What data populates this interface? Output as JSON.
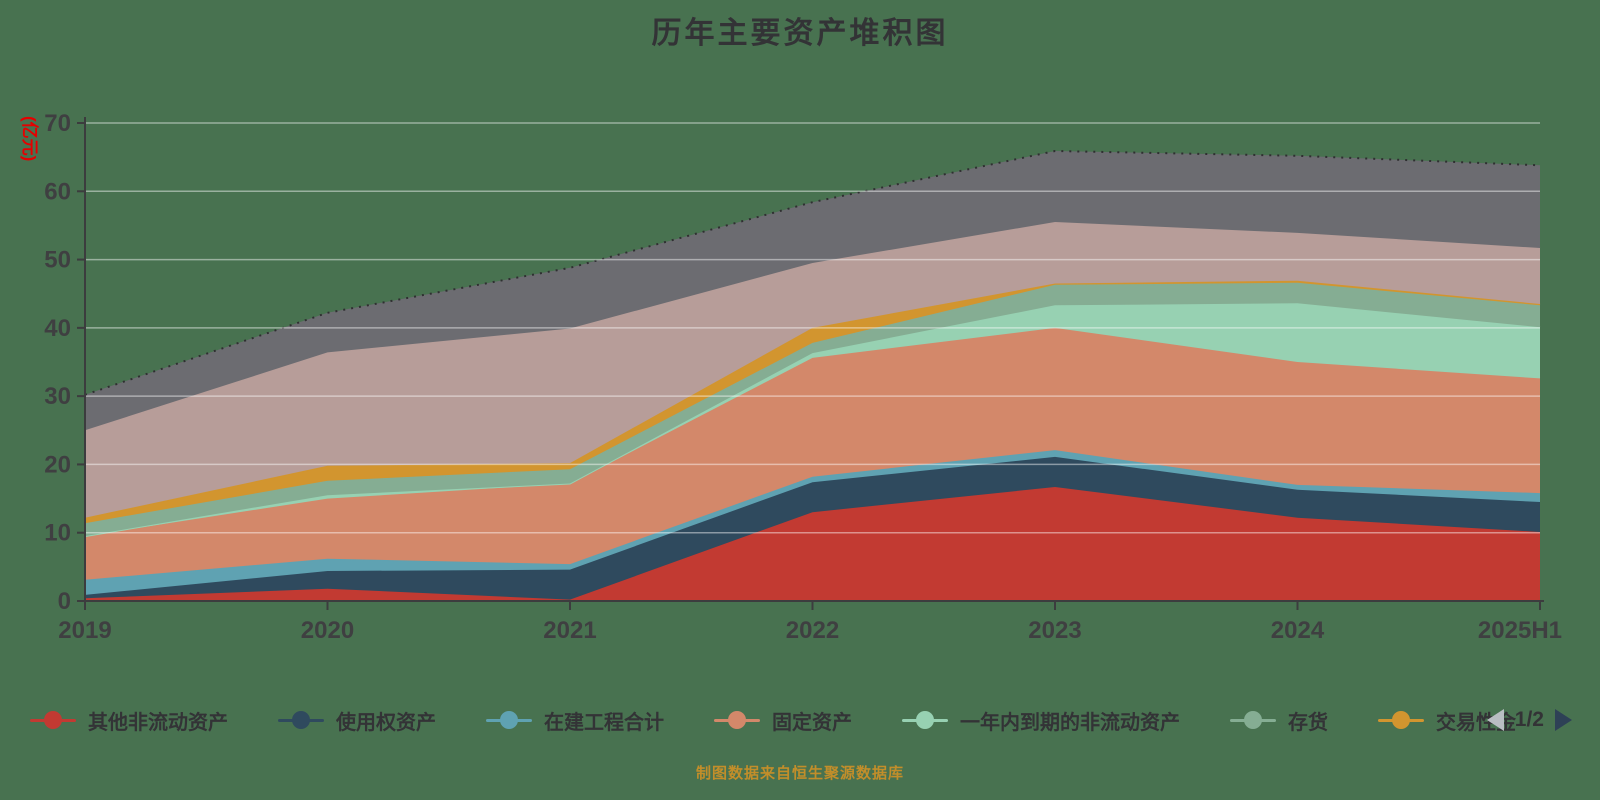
{
  "title": "历年主要资产堆积图",
  "caption": "制图数据来自恒生聚源数据库",
  "y_axis": {
    "name": "(亿元)",
    "ticks": [
      0,
      10,
      20,
      30,
      40,
      50,
      60,
      70
    ]
  },
  "legend": {
    "pager": {
      "page": "1/2"
    }
  },
  "colors": {
    "background": "#487250",
    "axis": "#3c3c3e",
    "tick_label": "#3f3f41",
    "gridline": "rgba(255,255,255,0.45)",
    "title": "#333336",
    "unit_label": "#e60000",
    "caption": "#c28e2a",
    "pager_prev": "#b9bdc2",
    "pager_next": "#2e4156"
  },
  "chart_data": {
    "type": "area",
    "stacked": true,
    "grid": "horizontal",
    "legend_position": "bottom",
    "ylim": [
      0,
      70
    ],
    "ylabel": "(亿元)",
    "categories": [
      "2019",
      "2020",
      "2021",
      "2022",
      "2023",
      "2024",
      "2025H1"
    ],
    "series": [
      {
        "name": "其他非流动资产",
        "color": "#c23a32",
        "in_legend": true,
        "values": [
          0.4,
          1.8,
          0.2,
          13.0,
          16.7,
          12.2,
          10.1
        ]
      },
      {
        "name": "使用权资产",
        "color": "#2f4a5e",
        "in_legend": true,
        "values": [
          0.5,
          2.6,
          4.4,
          4.4,
          4.4,
          4.1,
          4.4
        ]
      },
      {
        "name": "在建工程合计",
        "color": "#5fa2b2",
        "in_legend": true,
        "values": [
          2.2,
          1.8,
          0.8,
          0.8,
          1.0,
          0.7,
          1.3
        ]
      },
      {
        "name": "固定资产",
        "color": "#d3886a",
        "in_legend": true,
        "values": [
          6.4,
          8.8,
          11.8,
          17.4,
          17.9,
          18.0,
          16.8
        ]
      },
      {
        "name": "一年内到期的非流动资产",
        "color": "#97d1b2",
        "in_legend": true,
        "values": [
          0.0,
          0.5,
          0.0,
          0.7,
          3.3,
          8.6,
          7.5
        ]
      },
      {
        "name": "存货",
        "color": "#85ad93",
        "in_legend": true,
        "values": [
          1.9,
          2.1,
          2.1,
          1.5,
          3.0,
          3.0,
          3.2
        ]
      },
      {
        "name": "交易性金",
        "color": "#d2952f",
        "in_legend": true,
        "values": [
          0.8,
          2.2,
          0.9,
          2.2,
          0.2,
          0.3,
          0.2
        ]
      },
      {
        "name": "",
        "color": "#b79d99",
        "in_legend": false,
        "values": [
          12.8,
          16.6,
          19.7,
          9.5,
          9.0,
          7.0,
          8.2
        ]
      },
      {
        "name": "",
        "color": "#6c6c71",
        "in_legend": false,
        "values": [
          5.2,
          5.8,
          8.9,
          8.9,
          10.4,
          11.3,
          12.1
        ]
      }
    ]
  }
}
